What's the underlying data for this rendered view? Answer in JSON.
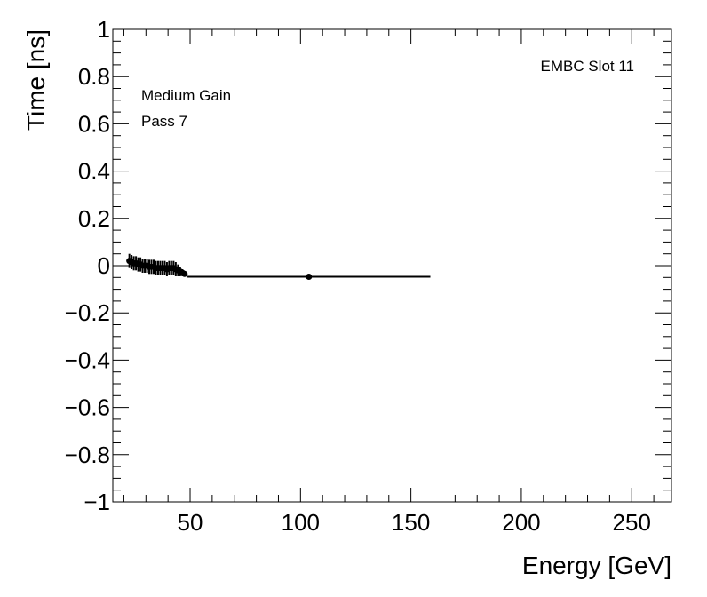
{
  "chart_data": {
    "type": "scatter",
    "title": "",
    "xlabel": "Energy [GeV]",
    "ylabel": "Time [ns]",
    "xlim": [
      15,
      268
    ],
    "ylim": [
      -1,
      1
    ],
    "x_ticks": [
      50,
      100,
      150,
      200,
      250
    ],
    "x_tick_labels": [
      "50",
      "100",
      "150",
      "200",
      "250"
    ],
    "y_ticks": [
      -1,
      -0.8,
      -0.6,
      -0.4,
      -0.2,
      0,
      0.2,
      0.4,
      0.6,
      0.8,
      1
    ],
    "y_tick_labels": [
      "−1",
      "−0.8",
      "−0.6",
      "−0.4",
      "−0.2",
      "0",
      "0.2",
      "0.4",
      "0.6",
      "0.8",
      "1"
    ],
    "grid": false,
    "legend": "none",
    "marker_color": "#000000",
    "annotations": {
      "top_right": "EMBC Slot 11",
      "line1": "Medium Gain",
      "line2": "Pass 7"
    },
    "series": [
      {
        "points": [
          {
            "x": 22.5,
            "y": 0.02,
            "xerr": 1.0,
            "yerr": 0.03
          },
          {
            "x": 23.5,
            "y": 0.015,
            "xerr": 1.0,
            "yerr": 0.03
          },
          {
            "x": 24.5,
            "y": 0.01,
            "xerr": 1.0,
            "yerr": 0.03
          },
          {
            "x": 25.5,
            "y": 0.01,
            "xerr": 1.0,
            "yerr": 0.03
          },
          {
            "x": 26.5,
            "y": 0.005,
            "xerr": 1.0,
            "yerr": 0.03
          },
          {
            "x": 27.5,
            "y": 0.005,
            "xerr": 1.0,
            "yerr": 0.03
          },
          {
            "x": 28.5,
            "y": 0.0,
            "xerr": 1.0,
            "yerr": 0.03
          },
          {
            "x": 29.5,
            "y": 0.0,
            "xerr": 1.0,
            "yerr": 0.03
          },
          {
            "x": 30.5,
            "y": 0.0,
            "xerr": 1.0,
            "yerr": 0.03
          },
          {
            "x": 31.5,
            "y": -0.005,
            "xerr": 1.0,
            "yerr": 0.03
          },
          {
            "x": 32.5,
            "y": -0.005,
            "xerr": 1.0,
            "yerr": 0.03
          },
          {
            "x": 33.5,
            "y": -0.005,
            "xerr": 1.0,
            "yerr": 0.03
          },
          {
            "x": 34.5,
            "y": -0.01,
            "xerr": 1.0,
            "yerr": 0.03
          },
          {
            "x": 35.5,
            "y": -0.01,
            "xerr": 1.0,
            "yerr": 0.03
          },
          {
            "x": 36.5,
            "y": -0.01,
            "xerr": 1.0,
            "yerr": 0.03
          },
          {
            "x": 37.5,
            "y": -0.01,
            "xerr": 1.0,
            "yerr": 0.03
          },
          {
            "x": 38.5,
            "y": -0.01,
            "xerr": 1.0,
            "yerr": 0.03
          },
          {
            "x": 39.5,
            "y": -0.015,
            "xerr": 1.0,
            "yerr": 0.03
          },
          {
            "x": 40.5,
            "y": -0.01,
            "xerr": 1.0,
            "yerr": 0.03
          },
          {
            "x": 41.5,
            "y": -0.01,
            "xerr": 1.0,
            "yerr": 0.03
          },
          {
            "x": 42.5,
            "y": -0.01,
            "xerr": 1.0,
            "yerr": 0.03
          },
          {
            "x": 43.5,
            "y": -0.015,
            "xerr": 1.0,
            "yerr": 0.03
          },
          {
            "x": 44.5,
            "y": -0.02,
            "xerr": 1.0,
            "yerr": 0.025
          },
          {
            "x": 45.5,
            "y": -0.025,
            "xerr": 1.0,
            "yerr": 0.02
          },
          {
            "x": 46.5,
            "y": -0.03,
            "xerr": 1.0,
            "yerr": 0.015
          },
          {
            "x": 47.5,
            "y": -0.035,
            "xerr": 1.0,
            "yerr": 0.01
          },
          {
            "x": 103.8,
            "y": -0.047,
            "xerr": 55.0,
            "yerr": 0.0
          }
        ]
      }
    ]
  }
}
